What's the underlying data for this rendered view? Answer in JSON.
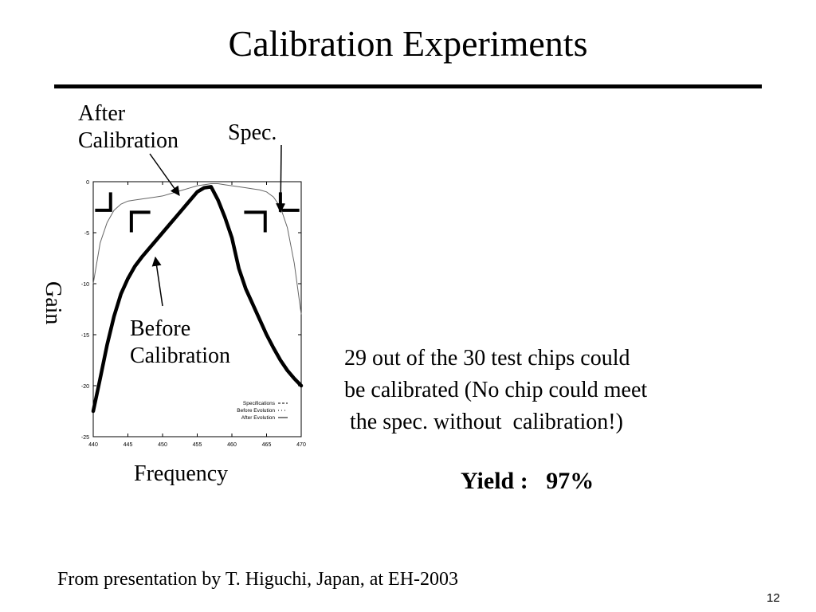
{
  "slide": {
    "title": "Calibration Experiments",
    "text": "29 out of the 30 test chips could\nbe calibrated (No chip could meet\n the spec. without  calibration!)",
    "yield": "Yield :   97%",
    "footnote": "From presentation by T. Higuchi, Japan, at EH-2003",
    "page_number": "12"
  },
  "annotations": {
    "after_line1": "After",
    "after_line2": "Calibration",
    "spec": "Spec.",
    "before_line1": "Before",
    "before_line2": "Calibration"
  },
  "chart_data": {
    "type": "line",
    "xlabel": "Frequency",
    "ylabel": "Gain",
    "xlim": [
      440,
      470
    ],
    "ylim": [
      -25,
      0
    ],
    "x_ticks": [
      440,
      445,
      450,
      455,
      460,
      465,
      470
    ],
    "y_ticks": [
      0,
      -5,
      -10,
      -15,
      -20,
      -25
    ],
    "grid": false,
    "legend_position": "bottom-right",
    "series": [
      {
        "name": "Specifications",
        "style": "dashed",
        "segments": [
          [
            [
              440.5,
              -2.8
            ],
            [
              442.5,
              -2.8
            ],
            [
              442.5,
              -1.2
            ]
          ],
          [
            [
              445.5,
              -4.8
            ],
            [
              445.5,
              -3.0
            ],
            [
              448.0,
              -3.0
            ]
          ],
          [
            [
              462.0,
              -3.0
            ],
            [
              464.8,
              -3.0
            ],
            [
              464.8,
              -4.8
            ]
          ],
          [
            [
              467.0,
              -1.2
            ],
            [
              467.0,
              -2.8
            ],
            [
              469.5,
              -2.8
            ]
          ]
        ]
      },
      {
        "name": "Before Evolution",
        "style": "dotted",
        "x": [
          440,
          441,
          442,
          443,
          444,
          445,
          446,
          447,
          448,
          449,
          450,
          451,
          452,
          453,
          454,
          455,
          456,
          457,
          458,
          459,
          460,
          461,
          462,
          463,
          464,
          465,
          466,
          467,
          468,
          469,
          470
        ],
        "values": [
          -22.5,
          -19.3,
          -16.0,
          -13.2,
          -11.0,
          -9.5,
          -8.3,
          -7.4,
          -6.6,
          -5.8,
          -5.0,
          -4.2,
          -3.4,
          -2.6,
          -1.8,
          -1.0,
          -0.6,
          -0.5,
          -1.8,
          -3.5,
          -5.5,
          -8.5,
          -10.5,
          -12.0,
          -13.5,
          -15.0,
          -16.3,
          -17.5,
          -18.5,
          -19.3,
          -20.0
        ]
      },
      {
        "name": "After Evolution",
        "style": "solid",
        "x": [
          440,
          441,
          442,
          443,
          444,
          445,
          446,
          447,
          448,
          449,
          450,
          451,
          452,
          453,
          454,
          455,
          456,
          457,
          458,
          459,
          460,
          461,
          462,
          463,
          464,
          465,
          466,
          467,
          468,
          469,
          470
        ],
        "values": [
          -10.0,
          -6.0,
          -4.0,
          -2.8,
          -2.2,
          -1.9,
          -1.8,
          -1.7,
          -1.6,
          -1.5,
          -1.4,
          -1.2,
          -1.0,
          -0.8,
          -0.6,
          -0.4,
          -0.3,
          -0.2,
          -0.2,
          -0.3,
          -0.4,
          -0.5,
          -0.6,
          -0.7,
          -0.8,
          -1.0,
          -1.5,
          -2.5,
          -4.5,
          -8.0,
          -13.0
        ]
      }
    ]
  }
}
